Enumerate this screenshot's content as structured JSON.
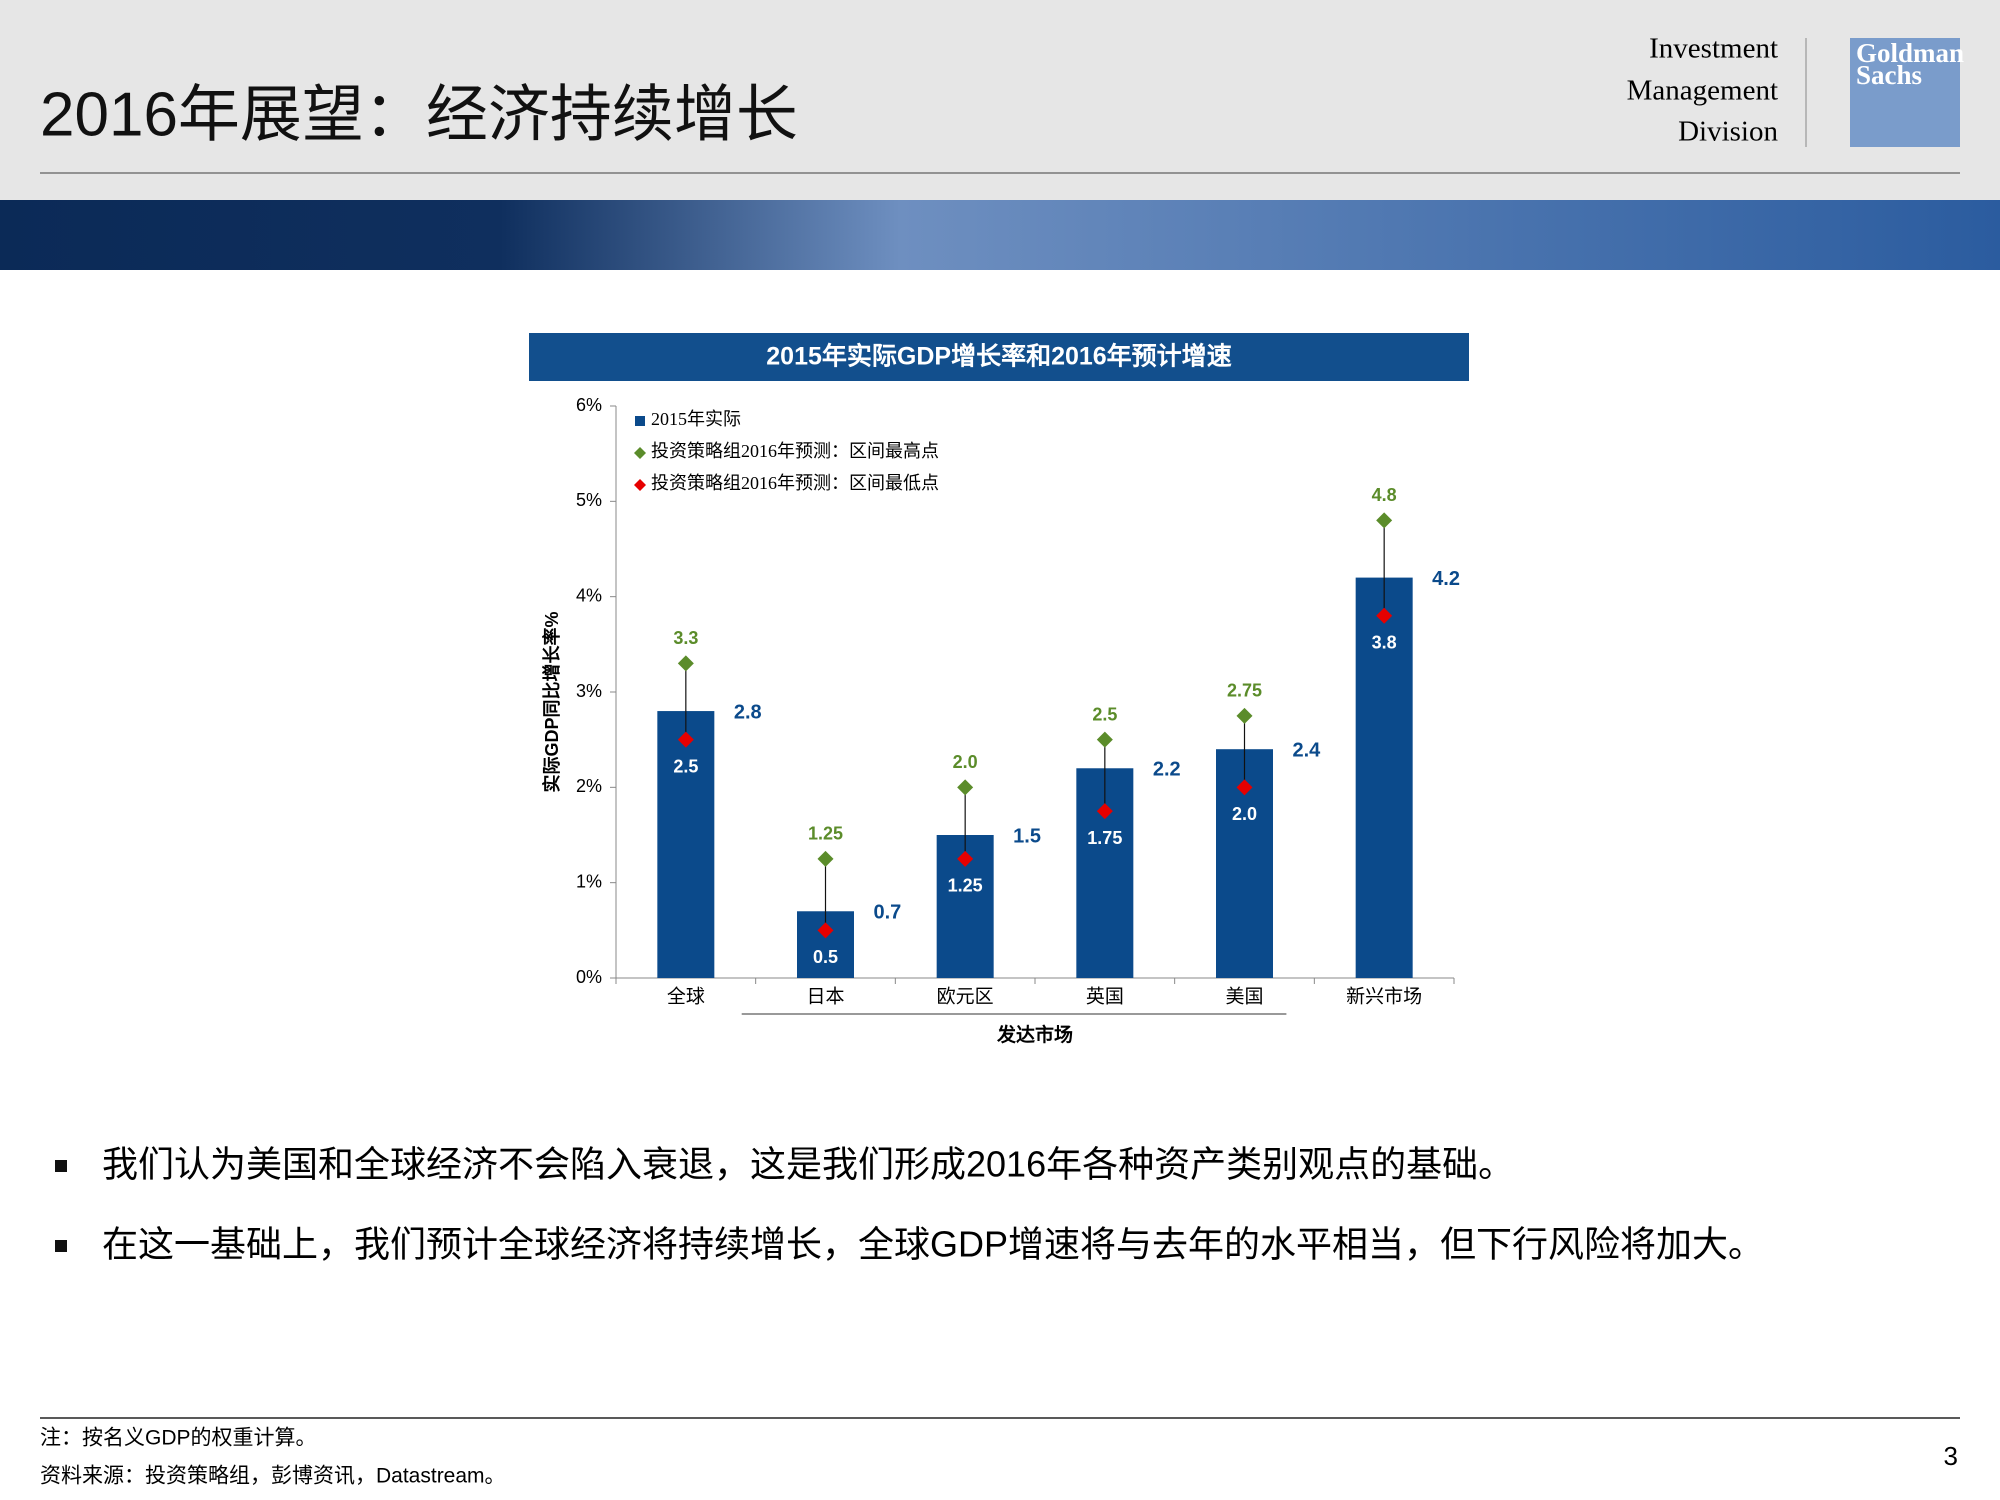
{
  "header": {
    "title": "2016年展望：经济持续增长",
    "division": [
      "Investment",
      "Management",
      "Division"
    ],
    "logo": [
      "Goldman",
      "Sachs"
    ]
  },
  "chart_data": {
    "type": "bar",
    "title": "2015年实际GDP增长率和2016年预计增速",
    "y_label": "实际GDP同比增长率%",
    "categories": [
      "全球",
      "日本",
      "欧元区",
      "英国",
      "美国",
      "新兴市场"
    ],
    "group": {
      "label": "发达市场",
      "from": 1,
      "to": 4
    },
    "series": [
      {
        "name": "2015年实际",
        "color": "#0b4a8b",
        "marker": "bar",
        "values": [
          2.8,
          0.7,
          1.5,
          2.2,
          2.4,
          4.2
        ],
        "value_labels": [
          "2.8",
          "0.7",
          "1.5",
          "2.2",
          "2.4",
          "4.2"
        ]
      },
      {
        "name": "投资策略组2016年预测：区间最高点",
        "color": "#5b8c2a",
        "marker": "diamond",
        "values": [
          3.3,
          1.25,
          2.0,
          2.5,
          2.75,
          4.8
        ],
        "value_labels": [
          "3.3",
          "1.25",
          "2.0",
          "2.5",
          "2.75",
          "4.8"
        ]
      },
      {
        "name": "投资策略组2016年预测：区间最低点",
        "color": "#e60000",
        "marker": "diamond",
        "values": [
          2.5,
          0.5,
          1.25,
          1.75,
          2.0,
          3.8
        ],
        "value_labels": [
          "2.5",
          "0.5",
          "1.25",
          "1.75",
          "2.0",
          "3.8"
        ]
      }
    ],
    "ylim": [
      0,
      6
    ],
    "yticks": [
      {
        "value": 0,
        "label": "0%"
      },
      {
        "value": 1,
        "label": "1%"
      },
      {
        "value": 2,
        "label": "2%"
      },
      {
        "value": 3,
        "label": "3%"
      },
      {
        "value": 4,
        "label": "4%"
      },
      {
        "value": 5,
        "label": "5%"
      },
      {
        "value": 6,
        "label": "6%"
      }
    ]
  },
  "bullets": [
    "我们认为美国和全球经济不会陷入衰退，这是我们形成2016年各种资产类别观点的基础。",
    "在这一基础上，我们预计全球经济将持续增长，全球GDP增速将与去年的水平相当，但下行风险将加大。"
  ],
  "footer": {
    "notes": [
      "注：按名义GDP的权重计算。",
      "资料来源：投资策略组，彭博资讯，Datastream。"
    ],
    "page": "3"
  }
}
